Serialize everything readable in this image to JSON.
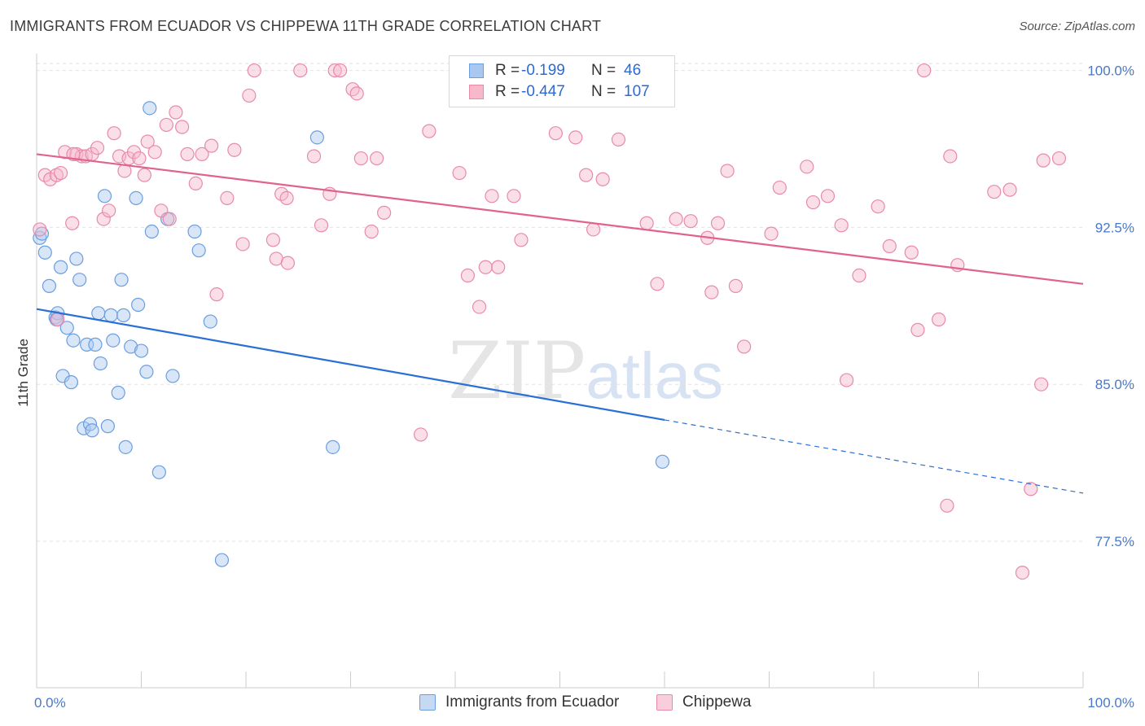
{
  "title": "IMMIGRANTS FROM ECUADOR VS CHIPPEWA 11TH GRADE CORRELATION CHART",
  "source": "Source: ZipAtlas.com",
  "watermark": {
    "zip": "ZIP",
    "atlas": "atlas"
  },
  "legend": {
    "rows": [
      {
        "r_label": "R =",
        "r_value": "-0.199",
        "n_label": "N =",
        "n_value": "46",
        "color": "#a8c8f0",
        "border": "#6a9ee0"
      },
      {
        "r_label": "R =",
        "r_value": "-0.447",
        "n_label": "N =",
        "n_value": "107",
        "color": "#f7b8cc",
        "border": "#e88aa8"
      }
    ]
  },
  "bottom_legend": [
    {
      "label": "Immigrants from Ecuador",
      "color": "#c5d9f3",
      "border": "#6a9ee0"
    },
    {
      "label": "Chippewa",
      "color": "#f9cdd9",
      "border": "#e88aa8"
    }
  ],
  "chart_data": {
    "type": "scatter",
    "title": "IMMIGRANTS FROM ECUADOR VS CHIPPEWA 11TH GRADE CORRELATION CHART",
    "xlabel": "",
    "ylabel": "11th Grade",
    "xlim": [
      0,
      100
    ],
    "ylim": [
      70.5,
      100.8
    ],
    "x_tick_labels": [
      "0.0%",
      "100.0%"
    ],
    "y_ticks": [
      77.5,
      85.0,
      92.5,
      100.0
    ],
    "y_tick_labels": [
      "77.5%",
      "85.0%",
      "92.5%",
      "100.0%"
    ],
    "grid": true,
    "series": [
      {
        "name": "Immigrants from Ecuador",
        "color": "#6a9ee0",
        "fill": "#a8c8f0",
        "trend": {
          "x0": 0,
          "y0": 88.6,
          "x1": 60,
          "y1": 83.3,
          "dash_to_x": 100,
          "dash_to_y": 79.8,
          "color": "#2a6fd6"
        },
        "points": [
          [
            0.3,
            92.0
          ],
          [
            0.8,
            91.3
          ],
          [
            1.2,
            89.7
          ],
          [
            1.8,
            88.2
          ],
          [
            2.0,
            88.4
          ],
          [
            2.3,
            90.6
          ],
          [
            2.5,
            85.4
          ],
          [
            2.9,
            87.7
          ],
          [
            3.3,
            85.1
          ],
          [
            3.5,
            87.1
          ],
          [
            3.8,
            91.0
          ],
          [
            4.1,
            90.0
          ],
          [
            4.5,
            82.9
          ],
          [
            4.8,
            86.9
          ],
          [
            5.1,
            83.1
          ],
          [
            5.3,
            82.8
          ],
          [
            5.6,
            86.9
          ],
          [
            5.9,
            88.4
          ],
          [
            6.1,
            86.0
          ],
          [
            6.5,
            94.0
          ],
          [
            6.8,
            83.0
          ],
          [
            7.1,
            88.3
          ],
          [
            7.3,
            87.1
          ],
          [
            7.8,
            84.6
          ],
          [
            8.1,
            90.0
          ],
          [
            8.3,
            88.3
          ],
          [
            8.5,
            82.0
          ],
          [
            9.0,
            86.8
          ],
          [
            9.5,
            93.9
          ],
          [
            9.7,
            88.8
          ],
          [
            10.0,
            86.6
          ],
          [
            10.5,
            85.6
          ],
          [
            10.8,
            98.2
          ],
          [
            11.0,
            92.3
          ],
          [
            11.7,
            80.8
          ],
          [
            12.5,
            92.9
          ],
          [
            13.0,
            85.4
          ],
          [
            15.1,
            92.3
          ],
          [
            15.5,
            91.4
          ],
          [
            16.6,
            88.0
          ],
          [
            17.7,
            76.6
          ],
          [
            26.8,
            96.8
          ],
          [
            28.3,
            82.0
          ],
          [
            59.8,
            81.3
          ],
          [
            0.5,
            92.2
          ],
          [
            1.9,
            88.1
          ]
        ]
      },
      {
        "name": "Chippewa",
        "color": "#e88aa8",
        "fill": "#f7b8cc",
        "trend": {
          "x0": 0,
          "y0": 96.0,
          "x1": 100,
          "y1": 89.8,
          "color": "#e0638c"
        },
        "points": [
          [
            0.3,
            92.4
          ],
          [
            0.8,
            95.0
          ],
          [
            1.3,
            94.8
          ],
          [
            1.9,
            95.0
          ],
          [
            2.3,
            95.1
          ],
          [
            2.7,
            96.1
          ],
          [
            3.4,
            92.7
          ],
          [
            3.8,
            96.0
          ],
          [
            4.3,
            95.9
          ],
          [
            4.7,
            95.9
          ],
          [
            5.3,
            96.0
          ],
          [
            5.8,
            96.3
          ],
          [
            6.4,
            92.9
          ],
          [
            6.9,
            93.3
          ],
          [
            7.4,
            97.0
          ],
          [
            7.9,
            95.9
          ],
          [
            8.4,
            95.2
          ],
          [
            8.8,
            95.8
          ],
          [
            9.3,
            96.1
          ],
          [
            9.8,
            95.8
          ],
          [
            10.3,
            95.0
          ],
          [
            10.6,
            96.6
          ],
          [
            11.3,
            96.1
          ],
          [
            11.9,
            93.3
          ],
          [
            12.4,
            97.4
          ],
          [
            12.7,
            92.9
          ],
          [
            13.3,
            98.0
          ],
          [
            13.9,
            97.3
          ],
          [
            14.4,
            96.0
          ],
          [
            15.2,
            94.6
          ],
          [
            15.8,
            96.0
          ],
          [
            16.7,
            96.4
          ],
          [
            17.2,
            89.3
          ],
          [
            18.2,
            93.9
          ],
          [
            18.9,
            96.2
          ],
          [
            19.7,
            91.7
          ],
          [
            20.3,
            98.8
          ],
          [
            20.8,
            100.0
          ],
          [
            22.6,
            91.9
          ],
          [
            22.9,
            91.0
          ],
          [
            23.4,
            94.1
          ],
          [
            23.9,
            93.9
          ],
          [
            25.2,
            100.0
          ],
          [
            26.5,
            95.9
          ],
          [
            27.2,
            92.6
          ],
          [
            28.0,
            94.1
          ],
          [
            28.5,
            100.0
          ],
          [
            29.0,
            100.0
          ],
          [
            30.2,
            99.1
          ],
          [
            30.6,
            98.9
          ],
          [
            31.0,
            95.8
          ],
          [
            32.5,
            95.8
          ],
          [
            33.2,
            93.2
          ],
          [
            32.0,
            92.3
          ],
          [
            36.7,
            82.6
          ],
          [
            37.5,
            97.1
          ],
          [
            40.4,
            95.1
          ],
          [
            41.2,
            90.2
          ],
          [
            42.3,
            88.7
          ],
          [
            42.9,
            90.6
          ],
          [
            43.5,
            94.0
          ],
          [
            44.1,
            90.6
          ],
          [
            45.6,
            94.0
          ],
          [
            46.3,
            91.9
          ],
          [
            49.6,
            97.0
          ],
          [
            51.5,
            96.8
          ],
          [
            52.5,
            95.0
          ],
          [
            53.2,
            92.4
          ],
          [
            54.1,
            94.8
          ],
          [
            55.6,
            96.7
          ],
          [
            58.3,
            92.7
          ],
          [
            59.3,
            89.8
          ],
          [
            61.1,
            92.9
          ],
          [
            62.5,
            92.8
          ],
          [
            64.1,
            92.0
          ],
          [
            64.5,
            89.4
          ],
          [
            65.1,
            92.7
          ],
          [
            66.0,
            95.2
          ],
          [
            66.8,
            89.7
          ],
          [
            67.6,
            86.8
          ],
          [
            70.2,
            92.2
          ],
          [
            71.0,
            94.4
          ],
          [
            73.6,
            95.4
          ],
          [
            74.2,
            93.7
          ],
          [
            75.6,
            94.0
          ],
          [
            76.9,
            92.6
          ],
          [
            77.4,
            85.2
          ],
          [
            78.6,
            90.2
          ],
          [
            80.4,
            93.5
          ],
          [
            81.5,
            91.6
          ],
          [
            83.6,
            91.3
          ],
          [
            84.2,
            87.6
          ],
          [
            84.8,
            100.0
          ],
          [
            86.2,
            88.1
          ],
          [
            87.0,
            79.2
          ],
          [
            87.3,
            95.9
          ],
          [
            88.0,
            90.7
          ],
          [
            91.5,
            94.2
          ],
          [
            93.0,
            94.3
          ],
          [
            94.2,
            76.0
          ],
          [
            95.0,
            80.0
          ],
          [
            96.0,
            85.0
          ],
          [
            96.2,
            95.7
          ],
          [
            97.7,
            95.8
          ],
          [
            2.0,
            88.1
          ],
          [
            3.5,
            96.0
          ],
          [
            24.0,
            90.8
          ]
        ]
      }
    ]
  }
}
